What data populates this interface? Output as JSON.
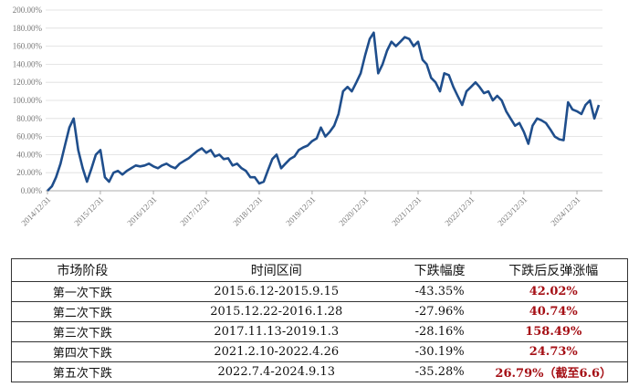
{
  "chart_data": {
    "type": "line",
    "x": [
      "2014/12/31",
      "2015/01/31",
      "2015/02/28",
      "2015/03/31",
      "2015/04/30",
      "2015/05/31",
      "2015/06/30",
      "2015/07/31",
      "2015/08/31",
      "2015/09/30",
      "2015/10/31",
      "2015/11/30",
      "2015/12/31",
      "2016/01/31",
      "2016/02/29",
      "2016/03/31",
      "2016/04/30",
      "2016/05/31",
      "2016/06/30",
      "2016/07/31",
      "2016/08/31",
      "2016/09/30",
      "2016/10/31",
      "2016/11/30",
      "2016/12/31",
      "2017/01/31",
      "2017/02/28",
      "2017/03/31",
      "2017/04/30",
      "2017/05/31",
      "2017/06/30",
      "2017/07/31",
      "2017/08/31",
      "2017/09/30",
      "2017/10/31",
      "2017/11/30",
      "2017/12/31",
      "2018/01/31",
      "2018/02/28",
      "2018/03/31",
      "2018/04/30",
      "2018/05/31",
      "2018/06/30",
      "2018/07/31",
      "2018/08/31",
      "2018/09/30",
      "2018/10/31",
      "2018/11/30",
      "2018/12/31",
      "2019/01/31",
      "2019/02/28",
      "2019/03/31",
      "2019/04/30",
      "2019/05/31",
      "2019/06/30",
      "2019/07/31",
      "2019/08/31",
      "2019/09/30",
      "2019/10/31",
      "2019/11/30",
      "2019/12/31",
      "2020/01/31",
      "2020/02/29",
      "2020/03/31",
      "2020/04/30",
      "2020/05/31",
      "2020/06/30",
      "2020/07/31",
      "2020/08/31",
      "2020/09/30",
      "2020/10/31",
      "2020/11/30",
      "2020/12/31",
      "2021/01/31",
      "2021/02/28",
      "2021/03/31",
      "2021/04/30",
      "2021/05/31",
      "2021/06/30",
      "2021/07/31",
      "2021/08/31",
      "2021/09/30",
      "2021/10/31",
      "2021/11/30",
      "2021/12/31",
      "2022/01/31",
      "2022/02/28",
      "2022/03/31",
      "2022/04/30",
      "2022/05/31",
      "2022/06/30",
      "2022/07/31",
      "2022/08/31",
      "2022/09/30",
      "2022/10/31",
      "2022/11/30",
      "2022/12/31",
      "2023/01/31",
      "2023/02/28",
      "2023/03/31",
      "2023/04/30",
      "2023/05/31",
      "2023/06/30",
      "2023/07/31",
      "2023/08/31",
      "2023/09/30",
      "2023/10/31",
      "2023/11/30",
      "2023/12/31",
      "2024/01/31",
      "2024/02/29",
      "2024/03/31",
      "2024/04/30",
      "2024/05/31",
      "2024/06/30",
      "2024/07/31",
      "2024/08/31",
      "2024/09/30",
      "2024/10/31",
      "2024/11/30",
      "2024/12/31",
      "2025/01/31",
      "2025/02/28",
      "2025/03/31",
      "2025/04/30",
      "2025/05/31"
    ],
    "series": [
      {
        "color": "#1f4e8c",
        "values": [
          0,
          5,
          15,
          30,
          50,
          70,
          80,
          45,
          25,
          10,
          25,
          40,
          45,
          15,
          10,
          20,
          22,
          18,
          22,
          25,
          28,
          27,
          28,
          30,
          27,
          25,
          28,
          30,
          27,
          25,
          30,
          33,
          36,
          40,
          44,
          47,
          42,
          45,
          38,
          40,
          35,
          36,
          28,
          30,
          25,
          22,
          15,
          15,
          8,
          10,
          22,
          35,
          40,
          25,
          30,
          35,
          38,
          45,
          48,
          50,
          55,
          58,
          70,
          60,
          65,
          72,
          85,
          110,
          115,
          110,
          120,
          130,
          150,
          168,
          175,
          130,
          140,
          155,
          165,
          160,
          165,
          170,
          168,
          160,
          165,
          145,
          140,
          125,
          120,
          110,
          130,
          128,
          115,
          105,
          95,
          110,
          115,
          120,
          115,
          108,
          110,
          100,
          105,
          100,
          88,
          80,
          72,
          75,
          65,
          52,
          72,
          80,
          78,
          75,
          68,
          60,
          57,
          56,
          98,
          90,
          88,
          85,
          95,
          100,
          80,
          95
        ]
      }
    ],
    "ylim": [
      0,
      200
    ],
    "yticks": [
      {
        "value": 0,
        "label": "0.00%"
      },
      {
        "value": 20,
        "label": "20.00%"
      },
      {
        "value": 40,
        "label": "40.00%"
      },
      {
        "value": 60,
        "label": "60.00%"
      },
      {
        "value": 80,
        "label": "80.00%"
      },
      {
        "value": 100,
        "label": "100.00%"
      },
      {
        "value": 120,
        "label": "120.00%"
      },
      {
        "value": 140,
        "label": "140.00%"
      },
      {
        "value": 160,
        "label": "160.00%"
      },
      {
        "value": 180,
        "label": "180.00%"
      },
      {
        "value": 200,
        "label": "200.00%"
      }
    ],
    "xticks": [
      "2014/12/31",
      "2015/12/31",
      "2016/12/31",
      "2017/12/31",
      "2018/12/31",
      "2019/12/31",
      "2020/12/31",
      "2021/12/31",
      "2022/12/31",
      "2023/12/31",
      "2024/12/31"
    ],
    "grid": true
  },
  "table": {
    "header": [
      "市场阶段",
      "时间区间",
      "下跌幅度",
      "下跌后反弹涨幅"
    ],
    "rows": [
      [
        "第一次下跌",
        "2015.6.12-2015.9.15",
        "-43.35%",
        "42.02%"
      ],
      [
        "第二次下跌",
        "2015.12.22-2016.1.28",
        "-27.96%",
        "40.74%"
      ],
      [
        "第三次下跌",
        "2017.11.13-2019.1.3",
        "-28.16%",
        "158.49%"
      ],
      [
        "第四次下跌",
        "2021.2.10-2022.4.26",
        "-30.19%",
        "24.73%"
      ],
      [
        "第五次下跌",
        "2022.7.4-2024.9.13",
        "-35.28%",
        "26.79%（截至6.6）"
      ]
    ]
  }
}
